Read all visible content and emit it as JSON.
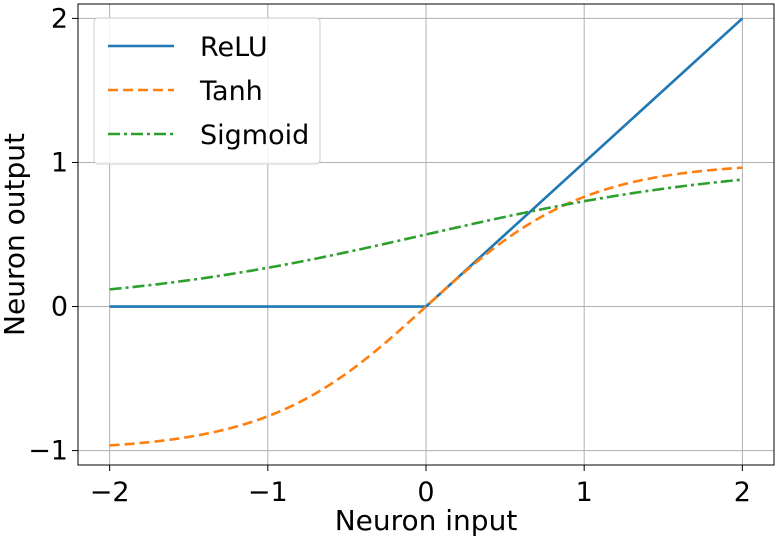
{
  "chart_data": {
    "type": "line",
    "xlabel": "Neuron input",
    "ylabel": "Neuron output",
    "xlim": [
      -2.2,
      2.2
    ],
    "ylim": [
      -1.1,
      2.1
    ],
    "xticks": [
      -2,
      -1,
      0,
      1,
      2
    ],
    "yticks": [
      -1,
      0,
      1,
      2
    ],
    "xtick_labels": [
      "−2",
      "−1",
      "0",
      "1",
      "2"
    ],
    "ytick_labels": [
      "−1",
      "0",
      "1",
      "2"
    ],
    "grid": true,
    "legend_position": "upper-left",
    "series": [
      {
        "name": "ReLU",
        "color": "#1f77b4",
        "dash": "solid",
        "x": [
          -2,
          0,
          2
        ],
        "y": [
          0,
          0,
          2
        ]
      },
      {
        "name": "Tanh",
        "color": "#ff7f0e",
        "dash": "dashed",
        "x": [
          -2,
          -1.5,
          -1,
          -0.5,
          0,
          0.5,
          1,
          1.5,
          2
        ],
        "y": [
          -0.964,
          -0.905,
          -0.762,
          -0.462,
          0,
          0.462,
          0.762,
          0.905,
          0.964
        ]
      },
      {
        "name": "Sigmoid",
        "color": "#2ca02c",
        "dash": "dashdot",
        "x": [
          -2,
          -1.5,
          -1,
          -0.5,
          0,
          0.5,
          1,
          1.5,
          2
        ],
        "y": [
          0.119,
          0.182,
          0.269,
          0.378,
          0.5,
          0.622,
          0.731,
          0.818,
          0.881
        ]
      }
    ]
  }
}
